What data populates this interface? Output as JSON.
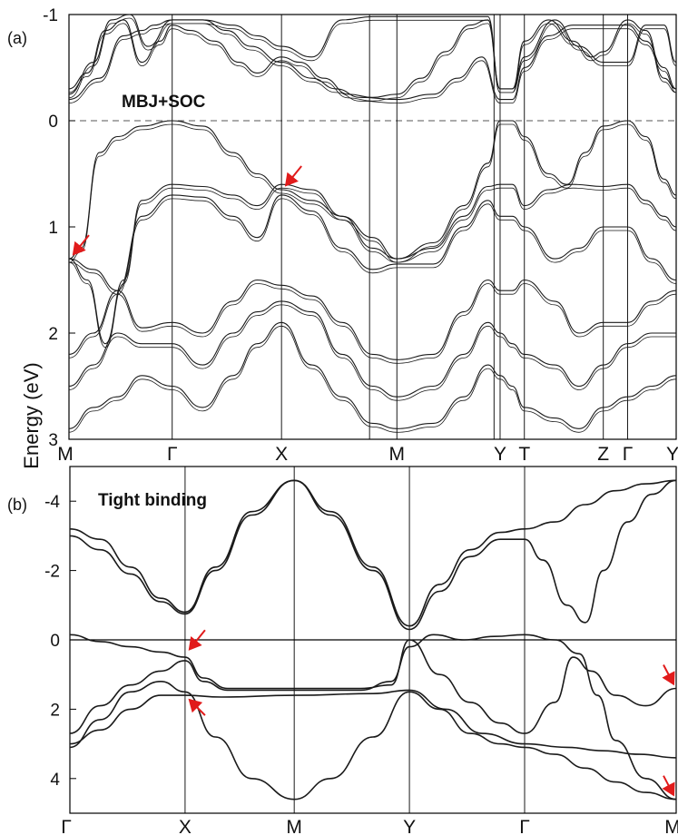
{
  "ylabel": "Energy (eV)",
  "colors": {
    "band": "#1a1a1a",
    "arrow": "#e11b1b",
    "frame": "#000000",
    "fermi": "#555555"
  },
  "chart_data": [
    {
      "type": "line",
      "panel_label": "(a)",
      "title": "MBJ+SOC",
      "ylabel": "Energy (eV)",
      "ylim": [
        -1,
        3
      ],
      "y_inverted": true,
      "fermi_level": 0,
      "yticks": [
        -1,
        0,
        1,
        2,
        3
      ],
      "kpoints": [
        {
          "label": "M",
          "x": 0
        },
        {
          "label": "Γ",
          "x": 0.17
        },
        {
          "label": "X",
          "x": 0.35
        },
        {
          "label": "M",
          "x": 0.54
        },
        {
          "label": "Y",
          "x": 0.71
        },
        {
          "label": "T",
          "x": 0.75
        },
        {
          "label": "Z",
          "x": 0.88
        },
        {
          "label": "Γ",
          "x": 0.92
        },
        {
          "label": "Y",
          "x": 1.0
        }
      ],
      "extra_vlines": [
        0.495,
        0.7
      ],
      "series": [
        {
          "x": [
            0,
            0.03,
            0.06,
            0.09,
            0.12,
            0.15,
            0.17,
            0.2,
            0.24,
            0.28,
            0.31,
            0.35,
            0.38,
            0.42,
            0.46,
            0.5,
            0.54,
            0.58,
            0.62,
            0.66,
            0.69,
            0.71,
            0.73,
            0.75,
            0.79,
            0.83,
            0.86,
            0.88,
            0.92,
            0.95,
            0.98,
            1.0
          ],
          "y": [
            -0.3,
            -0.45,
            -0.85,
            -0.95,
            -0.55,
            -0.75,
            -0.9,
            -0.85,
            -0.75,
            -0.55,
            -0.45,
            -0.6,
            -0.55,
            -0.4,
            -0.25,
            -0.22,
            -0.25,
            -0.4,
            -0.65,
            -0.9,
            -0.95,
            -0.3,
            -0.3,
            -0.75,
            -0.95,
            -0.75,
            -0.6,
            -0.65,
            -0.95,
            -0.85,
            -0.4,
            -0.3
          ]
        },
        {
          "x": [
            0,
            0.04,
            0.07,
            0.1,
            0.13,
            0.17,
            0.22,
            0.27,
            0.31,
            0.35,
            0.4,
            0.45,
            0.5,
            0.54,
            0.6,
            0.65,
            0.69,
            0.71,
            0.73,
            0.75,
            0.8,
            0.84,
            0.88,
            0.92,
            0.95,
            0.98,
            1.0
          ],
          "y": [
            -0.25,
            -0.55,
            -0.95,
            -1.0,
            -0.7,
            -0.95,
            -0.95,
            -0.9,
            -0.8,
            -0.7,
            -0.6,
            -0.95,
            -0.98,
            -0.98,
            -0.98,
            -0.98,
            -0.98,
            -0.3,
            -0.3,
            -0.6,
            -0.95,
            -0.7,
            -0.55,
            -0.55,
            -0.9,
            -0.9,
            -0.55
          ]
        },
        {
          "x": [
            0,
            0.05,
            0.09,
            0.12,
            0.14,
            0.17,
            0.22,
            0.26,
            0.3,
            0.35,
            0.4,
            0.44,
            0.48,
            0.54,
            0.6,
            0.64,
            0.68,
            0.71,
            0.73,
            0.75,
            0.79,
            0.83,
            0.88,
            0.92,
            0.95,
            0.98,
            1.0
          ],
          "y": [
            -0.2,
            -0.4,
            -0.8,
            -0.85,
            -0.9,
            -0.95,
            -0.95,
            -0.85,
            -0.7,
            -0.55,
            -0.4,
            -0.3,
            -0.22,
            -0.2,
            -0.25,
            -0.4,
            -0.6,
            -0.2,
            -0.2,
            -0.5,
            -0.8,
            -0.9,
            -0.9,
            -0.9,
            -0.75,
            -0.5,
            -0.3
          ]
        },
        {
          "x": [
            0,
            0.02,
            0.05,
            0.08,
            0.12,
            0.17,
            0.22,
            0.27,
            0.31,
            0.35,
            0.4,
            0.45,
            0.5,
            0.54,
            0.6,
            0.65,
            0.69,
            0.71,
            0.73,
            0.75,
            0.79,
            0.82,
            0.85,
            0.88,
            0.92,
            0.95,
            0.98,
            1.0
          ],
          "y": [
            1.3,
            1.2,
            0.3,
            0.15,
            0.05,
            0.0,
            0.05,
            0.3,
            0.5,
            0.65,
            0.75,
            0.9,
            1.1,
            1.3,
            1.15,
            0.8,
            0.4,
            0.0,
            0.0,
            0.15,
            0.5,
            0.6,
            0.3,
            0.05,
            0.0,
            0.15,
            0.55,
            0.7
          ]
        },
        {
          "x": [
            0,
            0.03,
            0.06,
            0.09,
            0.12,
            0.17,
            0.22,
            0.27,
            0.31,
            0.35,
            0.4,
            0.45,
            0.5,
            0.54,
            0.6,
            0.65,
            0.69,
            0.71,
            0.73,
            0.75,
            0.79,
            0.83,
            0.88,
            0.92,
            0.95,
            0.98,
            1.0
          ],
          "y": [
            1.3,
            1.5,
            2.1,
            1.5,
            0.75,
            0.6,
            0.62,
            0.7,
            0.8,
            0.6,
            0.65,
            0.9,
            1.2,
            1.3,
            1.2,
            0.9,
            0.62,
            0.6,
            0.6,
            0.8,
            0.65,
            0.6,
            0.62,
            0.6,
            0.75,
            0.9,
            1.0
          ]
        },
        {
          "x": [
            0,
            0.04,
            0.08,
            0.12,
            0.17,
            0.22,
            0.27,
            0.31,
            0.35,
            0.4,
            0.45,
            0.5,
            0.54,
            0.6,
            0.65,
            0.69,
            0.71,
            0.73,
            0.75,
            0.8,
            0.84,
            0.88,
            0.92,
            0.96,
            1.0
          ],
          "y": [
            1.3,
            1.4,
            1.6,
            0.9,
            0.7,
            0.72,
            0.9,
            1.1,
            0.7,
            0.85,
            1.2,
            1.4,
            1.35,
            1.35,
            1.0,
            0.75,
            0.9,
            0.9,
            1.0,
            1.3,
            1.2,
            1.0,
            1.0,
            1.3,
            1.5
          ]
        },
        {
          "x": [
            0,
            0.04,
            0.08,
            0.12,
            0.17,
            0.22,
            0.27,
            0.31,
            0.35,
            0.4,
            0.45,
            0.5,
            0.54,
            0.6,
            0.65,
            0.69,
            0.71,
            0.73,
            0.75,
            0.8,
            0.84,
            0.88,
            0.92,
            0.96,
            1.0
          ],
          "y": [
            2.2,
            2.0,
            1.6,
            1.95,
            1.9,
            2.0,
            1.7,
            1.5,
            1.55,
            1.65,
            1.9,
            2.2,
            2.25,
            2.2,
            1.8,
            1.5,
            1.6,
            1.6,
            1.5,
            1.7,
            2.0,
            1.9,
            1.9,
            1.7,
            1.6
          ]
        },
        {
          "x": [
            0,
            0.04,
            0.08,
            0.12,
            0.17,
            0.22,
            0.27,
            0.31,
            0.35,
            0.4,
            0.45,
            0.5,
            0.54,
            0.6,
            0.65,
            0.69,
            0.71,
            0.73,
            0.75,
            0.8,
            0.84,
            0.88,
            0.92,
            0.96,
            1.0
          ],
          "y": [
            2.5,
            2.3,
            2.0,
            2.1,
            2.1,
            2.3,
            2.0,
            1.8,
            1.7,
            1.8,
            2.2,
            2.5,
            2.6,
            2.5,
            2.2,
            1.9,
            2.0,
            2.1,
            2.2,
            2.3,
            2.5,
            2.3,
            2.1,
            2.0,
            2.0
          ]
        },
        {
          "x": [
            0,
            0.04,
            0.08,
            0.12,
            0.17,
            0.22,
            0.27,
            0.31,
            0.35,
            0.4,
            0.45,
            0.5,
            0.54,
            0.6,
            0.65,
            0.69,
            0.71,
            0.73,
            0.75,
            0.8,
            0.84,
            0.88,
            0.92,
            0.96,
            1.0
          ],
          "y": [
            2.9,
            2.7,
            2.6,
            2.4,
            2.5,
            2.7,
            2.4,
            2.1,
            1.9,
            2.3,
            2.6,
            2.85,
            2.9,
            2.85,
            2.6,
            2.3,
            2.4,
            2.5,
            2.7,
            2.8,
            2.9,
            2.7,
            2.6,
            2.5,
            2.4
          ]
        }
      ],
      "annotations": [
        {
          "type": "arrow",
          "at": [
            0,
            1.3
          ]
        },
        {
          "type": "arrow",
          "at": [
            0.35,
            0.65
          ]
        }
      ]
    },
    {
      "type": "line",
      "panel_label": "(b)",
      "title": "Tight binding",
      "ylim": [
        -5,
        5
      ],
      "y_inverted": true,
      "fermi_level": 0,
      "yticks": [
        -4,
        -2,
        0,
        2,
        4
      ],
      "kpoints": [
        {
          "label": "Γ",
          "x": 0
        },
        {
          "label": "X",
          "x": 0.19
        },
        {
          "label": "M",
          "x": 0.37
        },
        {
          "label": "Y",
          "x": 0.56
        },
        {
          "label": "Γ",
          "x": 0.75
        },
        {
          "label": "M",
          "x": 1.0
        }
      ],
      "series": [
        {
          "x": [
            0,
            0.05,
            0.1,
            0.15,
            0.19,
            0.24,
            0.3,
            0.37,
            0.43,
            0.5,
            0.56,
            0.61,
            0.66,
            0.71,
            0.75,
            0.8,
            0.85,
            0.9,
            0.95,
            1.0
          ],
          "y": [
            -3.2,
            -2.9,
            -2.1,
            -1.2,
            -0.8,
            -2.1,
            -3.7,
            -4.6,
            -3.7,
            -2.1,
            -0.4,
            -1.6,
            -2.6,
            -3.1,
            -3.2,
            -3.4,
            -3.9,
            -4.3,
            -4.5,
            -4.6
          ]
        },
        {
          "x": [
            0,
            0.05,
            0.1,
            0.15,
            0.19,
            0.24,
            0.3,
            0.37,
            0.43,
            0.5,
            0.56,
            0.61,
            0.66,
            0.71,
            0.75,
            0.78,
            0.82,
            0.85,
            0.88,
            0.92,
            0.96,
            1.0
          ],
          "y": [
            -3.0,
            -2.6,
            -1.9,
            -1.1,
            -0.75,
            -2.0,
            -3.6,
            -4.6,
            -3.6,
            -2.0,
            -0.3,
            -1.4,
            -2.4,
            -2.9,
            -2.9,
            -2.3,
            -1.0,
            -0.5,
            -2.0,
            -3.4,
            -4.2,
            -4.6
          ]
        },
        {
          "x": [
            0,
            0.05,
            0.1,
            0.15,
            0.19,
            0.22,
            0.26,
            0.37,
            0.48,
            0.53,
            0.56,
            0.61,
            0.66,
            0.71,
            0.75,
            0.8,
            0.83,
            0.86,
            0.9,
            0.95,
            1.0
          ],
          "y": [
            -0.15,
            0.05,
            0.2,
            0.35,
            0.5,
            1.1,
            1.4,
            1.4,
            1.4,
            1.3,
            0.0,
            1.0,
            1.8,
            2.4,
            2.7,
            1.8,
            0.5,
            0.9,
            1.6,
            1.9,
            1.4
          ]
        },
        {
          "x": [
            0,
            0.05,
            0.1,
            0.15,
            0.19,
            0.22,
            0.26,
            0.37,
            0.48,
            0.53,
            0.56,
            0.6,
            0.65,
            0.7,
            0.75,
            0.8,
            0.84,
            0.87,
            0.9,
            0.95,
            1.0
          ],
          "y": [
            2.7,
            1.9,
            1.3,
            0.9,
            0.6,
            1.2,
            1.45,
            1.45,
            1.45,
            1.2,
            0.2,
            -0.15,
            0.0,
            -0.1,
            -0.15,
            0.0,
            0.4,
            1.6,
            2.9,
            4.0,
            4.6
          ]
        },
        {
          "x": [
            0,
            0.05,
            0.1,
            0.15,
            0.19,
            0.24,
            0.3,
            0.37,
            0.43,
            0.5,
            0.56,
            0.61,
            0.66,
            0.71,
            0.75,
            0.8,
            0.85,
            0.9,
            0.95,
            1.0
          ],
          "y": [
            3.1,
            2.3,
            1.5,
            1.2,
            1.5,
            2.8,
            4.0,
            4.6,
            4.0,
            2.8,
            1.5,
            2.0,
            2.7,
            3.0,
            3.1,
            3.3,
            3.7,
            4.1,
            4.4,
            4.6
          ]
        },
        {
          "x": [
            0,
            0.05,
            0.1,
            0.15,
            0.19,
            0.25,
            0.37,
            0.5,
            0.56,
            0.62,
            0.68,
            0.75,
            0.82,
            0.88,
            0.94,
            1.0
          ],
          "y": [
            3.0,
            2.6,
            2.0,
            1.6,
            1.6,
            1.65,
            1.6,
            1.55,
            1.45,
            2.0,
            2.7,
            3.0,
            3.1,
            3.2,
            3.3,
            3.4
          ]
        }
      ],
      "annotations": [
        {
          "type": "arrow",
          "at": [
            0.19,
            0.4
          ]
        },
        {
          "type": "arrow",
          "at": [
            0.19,
            1.6
          ]
        },
        {
          "type": "arrow",
          "at": [
            1.0,
            1.4
          ]
        },
        {
          "type": "arrow",
          "at": [
            1.0,
            4.6
          ]
        }
      ]
    }
  ]
}
